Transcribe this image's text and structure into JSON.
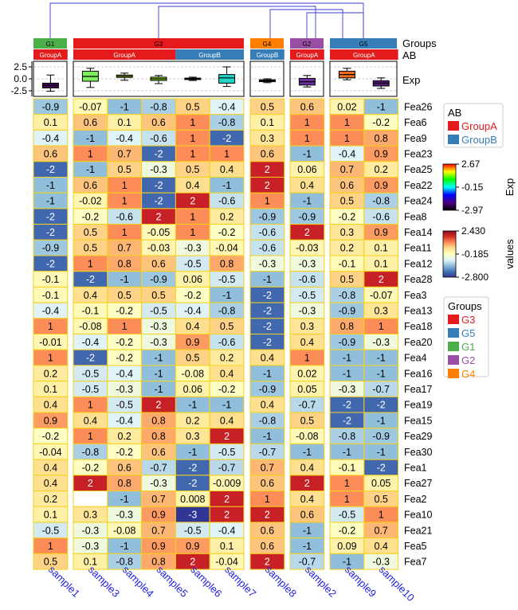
{
  "chart_data": {
    "type": "heatmap",
    "columns": [
      "sample1",
      "sample3",
      "sample4",
      "sample5",
      "sample6",
      "sample7",
      "sample8",
      "sample2",
      "sample9",
      "sample10"
    ],
    "column_groups": [
      {
        "name": "G1",
        "members": [
          "sample1"
        ]
      },
      {
        "name": "G3",
        "members": [
          "sample3",
          "sample4",
          "sample5",
          "sample6",
          "sample7"
        ]
      },
      {
        "name": "G4",
        "members": [
          "sample8"
        ]
      },
      {
        "name": "G2",
        "members": [
          "sample2"
        ]
      },
      {
        "name": "G5",
        "members": [
          "sample9",
          "sample10"
        ]
      }
    ],
    "ab": [
      "GroupA",
      "GroupA",
      "GroupA",
      "GroupA",
      "GroupB",
      "GroupB",
      "GroupB",
      "GroupA",
      "GroupA",
      "GroupA"
    ],
    "ab_segments": [
      {
        "label": "GroupA",
        "start": 0,
        "end": 0
      },
      {
        "label": "GroupA",
        "start": 1,
        "end": 3
      },
      {
        "label": "GroupB",
        "start": 4,
        "end": 5
      },
      {
        "label": "GroupB",
        "start": 6,
        "end": 6
      },
      {
        "label": "GroupA",
        "start": 7,
        "end": 7
      },
      {
        "label": "GroupA",
        "start": 8,
        "end": 9
      }
    ],
    "rows": [
      "Fea26",
      "Fea6",
      "Fea9",
      "Fea23",
      "Fea25",
      "Fea22",
      "Fea24",
      "Fea8",
      "Fea14",
      "Fea11",
      "Fea12",
      "Fea28",
      "Fea3",
      "Fea13",
      "Fea18",
      "Fea20",
      "Fea4",
      "Fea16",
      "Fea17",
      "Fea19",
      "Fea15",
      "Fea29",
      "Fea30",
      "Fea1",
      "Fea27",
      "Fea2",
      "Fea10",
      "Fea21",
      "Fea5",
      "Fea7"
    ],
    "values": [
      [
        -0.9,
        -0.07,
        -1,
        -0.8,
        0.5,
        -0.4,
        0.5,
        0.6,
        0.02,
        -1
      ],
      [
        0.1,
        0.6,
        0.1,
        0.6,
        1,
        -0.8,
        0.1,
        1,
        1,
        -0.2
      ],
      [
        -0.4,
        -1,
        -0.4,
        -0.6,
        1,
        -2,
        0.3,
        1,
        1,
        0.8
      ],
      [
        0.6,
        1,
        0.7,
        -2,
        1,
        1,
        0.6,
        -1,
        -0.4,
        0.9
      ],
      [
        -2,
        -1,
        0.5,
        -0.3,
        0.5,
        0.4,
        2,
        0.06,
        0.7,
        0.2
      ],
      [
        -1,
        0.6,
        1,
        -2,
        0.4,
        -1,
        2,
        0.4,
        0.6,
        0.9
      ],
      [
        -1,
        -0.02,
        1,
        -2,
        2,
        -0.6,
        1,
        -1,
        0.5,
        -0.8
      ],
      [
        -2,
        -0.2,
        -0.6,
        2,
        1,
        0.2,
        -0.9,
        -0.9,
        -0.2,
        -0.6
      ],
      [
        -2,
        0.5,
        1,
        -0.05,
        1,
        -0.2,
        -0.6,
        2,
        0.3,
        0.9
      ],
      [
        -0.9,
        0.5,
        0.7,
        -0.03,
        -0.3,
        -0.04,
        -0.6,
        -0.03,
        0.2,
        0.1
      ],
      [
        -2,
        1,
        0.8,
        0.6,
        -0.5,
        0.8,
        -0.3,
        -0.3,
        -0.1,
        0.1
      ],
      [
        -0.1,
        -2,
        -1,
        -0.9,
        0.06,
        -0.5,
        -1,
        -0.6,
        0.5,
        2
      ],
      [
        -0.1,
        0.4,
        0.5,
        0.5,
        -0.2,
        -1,
        -2,
        -0.5,
        -0.8,
        -0.07
      ],
      [
        -0.4,
        -0.1,
        -0.2,
        -0.5,
        -0.4,
        -0.8,
        -2,
        -0.3,
        -0.9,
        0.3
      ],
      [
        1,
        -0.08,
        1,
        -0.3,
        0.4,
        0.5,
        -2,
        0.3,
        0.8,
        1
      ],
      [
        -0.01,
        -0.4,
        -0.2,
        -0.3,
        0.9,
        -0.6,
        -2,
        0.4,
        -0.9,
        -0.3
      ],
      [
        1,
        -2,
        -0.2,
        -1,
        0.5,
        0.2,
        0.4,
        1,
        -1,
        -1
      ],
      [
        0.2,
        -0.5,
        -0.4,
        -1,
        -0.08,
        0.4,
        -1,
        0.02,
        -1,
        -1
      ],
      [
        0.1,
        -0.5,
        -0.3,
        -1,
        0.06,
        -0.2,
        -0.9,
        0.05,
        -0.3,
        -0.7
      ],
      [
        0.4,
        1,
        -0.5,
        2,
        -1,
        -1,
        0.4,
        -0.7,
        -2,
        -2
      ],
      [
        0.9,
        0.4,
        -0.4,
        0.8,
        0.2,
        0.4,
        -0.8,
        0.5,
        -2,
        -1
      ],
      [
        -0.2,
        1,
        0.2,
        0.8,
        0.3,
        2,
        -1,
        -0.08,
        -0.8,
        -0.9
      ],
      [
        -0.04,
        -0.8,
        -0.2,
        0.6,
        -1,
        -0.5,
        -0.7,
        -1,
        -1,
        -1
      ],
      [
        0.4,
        -0.2,
        0.6,
        -0.7,
        -2,
        -0.7,
        0.7,
        0.4,
        -0.1,
        -2
      ],
      [
        0.4,
        2,
        0.8,
        -0.3,
        -2,
        -0.009,
        0.6,
        2,
        1,
        0.05
      ],
      [
        0.2,
        null,
        -1,
        0.7,
        0.008,
        2,
        1,
        0.4,
        1,
        0.5
      ],
      [
        0.1,
        0.3,
        -0.3,
        0.9,
        -3,
        2,
        2,
        0.6,
        -0.5,
        1
      ],
      [
        -0.5,
        -0.3,
        -0.08,
        0.7,
        -0.5,
        -0.4,
        0.6,
        -1,
        -0.2,
        0.7
      ],
      [
        1,
        -0.3,
        -1,
        0.9,
        0.9,
        0.1,
        0.6,
        -1,
        0.09,
        0.4
      ],
      [
        0.5,
        0.1,
        -0.8,
        0.8,
        2,
        -0.04,
        2,
        -0.7,
        -1,
        -0.3
      ]
    ],
    "exp_boxplot": {
      "ylabel": "Exp",
      "ylim": [
        -3.5,
        3.5
      ],
      "yticks": [
        "2.5",
        "0.0",
        "-2.5"
      ],
      "boxes": [
        {
          "col": "sample1",
          "q1": -1.9,
          "median": -1.4,
          "q3": -0.9,
          "lo": -2.6,
          "hi": 0.8,
          "color": "#44015c"
        },
        {
          "col": "sample3",
          "q1": -0.5,
          "median": 0.5,
          "q3": 1.6,
          "lo": -1.8,
          "hi": 2.2,
          "color": "#7ef060"
        },
        {
          "col": "sample4",
          "q1": 0.3,
          "median": 0.55,
          "q3": 0.8,
          "lo": -0.3,
          "hi": 1.2,
          "color": "#aaf02c"
        },
        {
          "col": "sample5",
          "q1": -0.35,
          "median": 0.0,
          "q3": 0.35,
          "lo": -1.0,
          "hi": 0.7,
          "color": "#8fe62f"
        },
        {
          "col": "sample6",
          "q1": -0.15,
          "median": 0.0,
          "q3": 0.15,
          "lo": -0.35,
          "hi": 0.35,
          "color": "#9ee530"
        },
        {
          "col": "sample7",
          "q1": -0.9,
          "median": 0.2,
          "q3": 0.9,
          "lo": -1.6,
          "hi": 2.5,
          "color": "#1fd6c8"
        },
        {
          "col": "sample8",
          "q1": -0.6,
          "median": -0.4,
          "q3": -0.2,
          "lo": -0.8,
          "hi": 0.0,
          "color": "#5b1e88"
        },
        {
          "col": "sample2",
          "q1": -1.3,
          "median": -0.6,
          "q3": 0.1,
          "lo": -1.7,
          "hi": 0.7,
          "color": "#6a2f9e"
        },
        {
          "col": "sample9",
          "q1": 0.2,
          "median": 0.9,
          "q3": 1.6,
          "lo": -0.2,
          "hi": 2.2,
          "color": "#f26b1f"
        },
        {
          "col": "sample10",
          "q1": -1.5,
          "median": -0.9,
          "q3": -0.4,
          "lo": -2.0,
          "hi": 0.2,
          "color": "#5a1a78"
        }
      ]
    },
    "annotation_labels": [
      "Groups",
      "AB",
      "Exp"
    ],
    "legends": {
      "ab": {
        "title": "AB",
        "items": [
          {
            "label": "GroupA",
            "color": "#e41a1c"
          },
          {
            "label": "GroupB",
            "color": "#377eb8"
          }
        ]
      },
      "exp": {
        "title": "Exp",
        "ticks": [
          "2.67",
          "-0.15",
          "-2.97"
        ],
        "colors": [
          "#ff0000",
          "#ffff00",
          "#00ff00",
          "#00ffff",
          "#0000ff",
          "#4b0082",
          "#000000"
        ]
      },
      "values": {
        "title": "values",
        "ticks": [
          "2.430",
          "-0.185",
          "-2.800"
        ],
        "colors": [
          "#8b0a1f",
          "#d73027",
          "#fc8d59",
          "#fee090",
          "#ffffbf",
          "#e0f3f8",
          "#91bfdb",
          "#4575b4",
          "#313695"
        ]
      },
      "groups": {
        "title": "Groups",
        "items": [
          {
            "label": "G3",
            "color": "#e41a1c"
          },
          {
            "label": "G5",
            "color": "#377eb8"
          },
          {
            "label": "G1",
            "color": "#4daf4a"
          },
          {
            "label": "G2",
            "color": "#984ea3"
          },
          {
            "label": "G4",
            "color": "#ff7f00"
          }
        ]
      }
    }
  }
}
